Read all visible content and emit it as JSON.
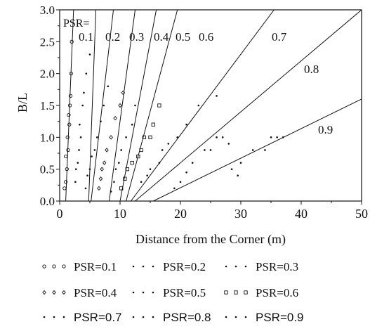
{
  "chart_data": {
    "type": "scatter",
    "title": "",
    "xlabel": "Distance from the Corner (m)",
    "ylabel": "B/L",
    "xlim": [
      0,
      50
    ],
    "ylim": [
      0,
      3.0
    ],
    "xticks": [
      "0",
      "10",
      "20",
      "30",
      "40",
      "50"
    ],
    "yticks": [
      "0.0",
      "0.5",
      "1.0",
      "1.5",
      "2.0",
      "2.5",
      "3.0"
    ],
    "grid": false,
    "legend_position": "bottom",
    "psr_header": "PSR=",
    "lines": [
      {
        "label": "0.1",
        "x_at_0": 1.0,
        "x_at_3": 2.3
      },
      {
        "label": "0.2",
        "x_at_0": 4.8,
        "x_at_3": 6.0
      },
      {
        "label": "0.3",
        "x_at_0": 5.2,
        "x_at_3": 8.9
      },
      {
        "label": "0.4",
        "x_at_0": 8.2,
        "x_at_3": 12.5
      },
      {
        "label": "0.5",
        "x_at_0": 10.0,
        "x_at_3": 16.0
      },
      {
        "label": "0.6",
        "x_at_0": 11.0,
        "x_at_3": 19.5
      },
      {
        "label": "0.7",
        "x_at_0": 11.8,
        "x_at_3": 35.5
      },
      {
        "label": "0.8",
        "x_at_0": 12.5,
        "x_at_3": 50.0
      },
      {
        "label": "0.9",
        "x_at_0": 15.5,
        "x_at_1.6": 50.0
      }
    ],
    "series": [
      {
        "name": "PSR=0.1",
        "marker": "circle",
        "points": [
          [
            0.8,
            0.2
          ],
          [
            1.0,
            0.3
          ],
          [
            1.2,
            0.5
          ],
          [
            1.0,
            0.7
          ],
          [
            1.4,
            0.8
          ],
          [
            1.3,
            1.0
          ],
          [
            1.6,
            1.2
          ],
          [
            1.5,
            1.35
          ],
          [
            1.7,
            1.5
          ],
          [
            1.8,
            1.65
          ],
          [
            1.9,
            2.0
          ],
          [
            2.0,
            2.5
          ]
        ]
      },
      {
        "name": "PSR=0.2",
        "marker": "dot",
        "points": [
          [
            2.6,
            0.3
          ],
          [
            2.7,
            0.5
          ],
          [
            3.0,
            0.6
          ],
          [
            3.2,
            0.8
          ],
          [
            3.5,
            1.0
          ],
          [
            3.3,
            1.2
          ],
          [
            3.8,
            1.5
          ],
          [
            4.0,
            1.7
          ],
          [
            4.4,
            2.0
          ],
          [
            5.0,
            2.3
          ]
        ]
      },
      {
        "name": "PSR=0.3",
        "marker": "dot",
        "points": [
          [
            4.3,
            0.2
          ],
          [
            4.6,
            0.4
          ],
          [
            5.0,
            0.5
          ],
          [
            5.3,
            0.7
          ],
          [
            5.8,
            0.8
          ],
          [
            6.2,
            1.0
          ],
          [
            6.8,
            1.25
          ],
          [
            7.3,
            1.5
          ],
          [
            8.0,
            1.8
          ]
        ]
      },
      {
        "name": "PSR=0.4",
        "marker": "diamond",
        "points": [
          [
            6.5,
            0.2
          ],
          [
            6.8,
            0.35
          ],
          [
            7.0,
            0.5
          ],
          [
            7.4,
            0.6
          ],
          [
            7.8,
            0.8
          ],
          [
            8.5,
            1.0
          ],
          [
            9.2,
            1.3
          ],
          [
            10.0,
            1.5
          ],
          [
            10.5,
            1.7
          ]
        ]
      },
      {
        "name": "PSR=0.5",
        "marker": "dot",
        "points": [
          [
            8.5,
            0.15
          ],
          [
            9.0,
            0.3
          ],
          [
            9.3,
            0.5
          ],
          [
            9.8,
            0.6
          ],
          [
            10.2,
            0.8
          ],
          [
            11.0,
            1.0
          ],
          [
            12.0,
            1.2
          ],
          [
            12.5,
            1.5
          ]
        ]
      },
      {
        "name": "PSR=0.6",
        "marker": "square",
        "points": [
          [
            10.2,
            0.2
          ],
          [
            10.8,
            0.35
          ],
          [
            11.2,
            0.5
          ],
          [
            12.0,
            0.6
          ],
          [
            13.0,
            0.7
          ],
          [
            13.5,
            0.8
          ],
          [
            14.0,
            1.0
          ],
          [
            15.0,
            1.0
          ],
          [
            15.5,
            1.2
          ],
          [
            16.5,
            1.5
          ]
        ]
      },
      {
        "name": "PSR=0.7",
        "marker": "dot",
        "points": [
          [
            13.5,
            0.3
          ],
          [
            14.5,
            0.4
          ],
          [
            15.0,
            0.5
          ],
          [
            16.5,
            0.6
          ],
          [
            17.0,
            0.8
          ],
          [
            18.0,
            0.9
          ],
          [
            19.5,
            1.0
          ],
          [
            21.0,
            1.2
          ],
          [
            23.0,
            1.5
          ],
          [
            26.0,
            1.65
          ]
        ]
      },
      {
        "name": "PSR=0.8",
        "marker": "dot",
        "points": [
          [
            19.0,
            0.2
          ],
          [
            20.0,
            0.3
          ],
          [
            21.0,
            0.45
          ],
          [
            22.0,
            0.6
          ],
          [
            24.0,
            0.8
          ],
          [
            25.0,
            0.8
          ],
          [
            26.0,
            1.0
          ],
          [
            27.0,
            1.0
          ],
          [
            28.0,
            0.9
          ]
        ]
      },
      {
        "name": "PSR=0.9",
        "marker": "dot",
        "points": [
          [
            28.5,
            0.5
          ],
          [
            29.5,
            0.4
          ],
          [
            30.0,
            0.6
          ],
          [
            32.0,
            0.8
          ],
          [
            34.0,
            0.8
          ],
          [
            35.0,
            1.0
          ],
          [
            36.0,
            1.0
          ],
          [
            37.0,
            1.0
          ]
        ]
      }
    ]
  }
}
